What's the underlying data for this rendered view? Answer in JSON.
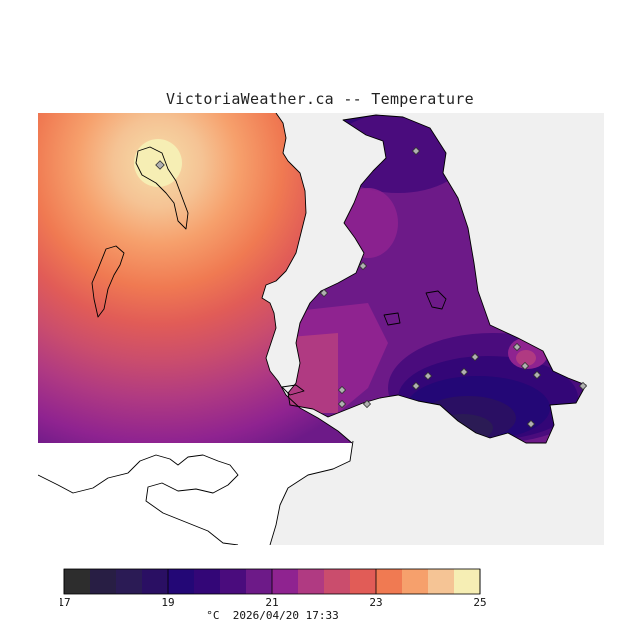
{
  "title": "VictoriaWeather.ca -- Temperature",
  "unit": "°C",
  "timestamp": "2026/04/20 17:33",
  "legend": {
    "min": 17,
    "max": 25,
    "tick_labels": [
      "17",
      "19",
      "21",
      "23",
      "25"
    ],
    "colors": [
      "#2d2d2d",
      "#281e44",
      "#2b1b55",
      "#2a0f63",
      "#230776",
      "#330677",
      "#4a0c7d",
      "#6d1a88",
      "#8f2390",
      "#b03a82",
      "#ca4d6d",
      "#e15c57",
      "#f07a52",
      "#f6a06c",
      "#f5c495",
      "#f6eeb4"
    ]
  },
  "colors": {
    "land_none": "#f0f0f0",
    "water": "#ffffff",
    "coastline": "#000000",
    "station_marker": "#b0b0b0"
  },
  "map": {
    "regions": [
      "mainland-west",
      "vancouver-island-southeast",
      "olympic-peninsula"
    ],
    "station_count": 16
  }
}
